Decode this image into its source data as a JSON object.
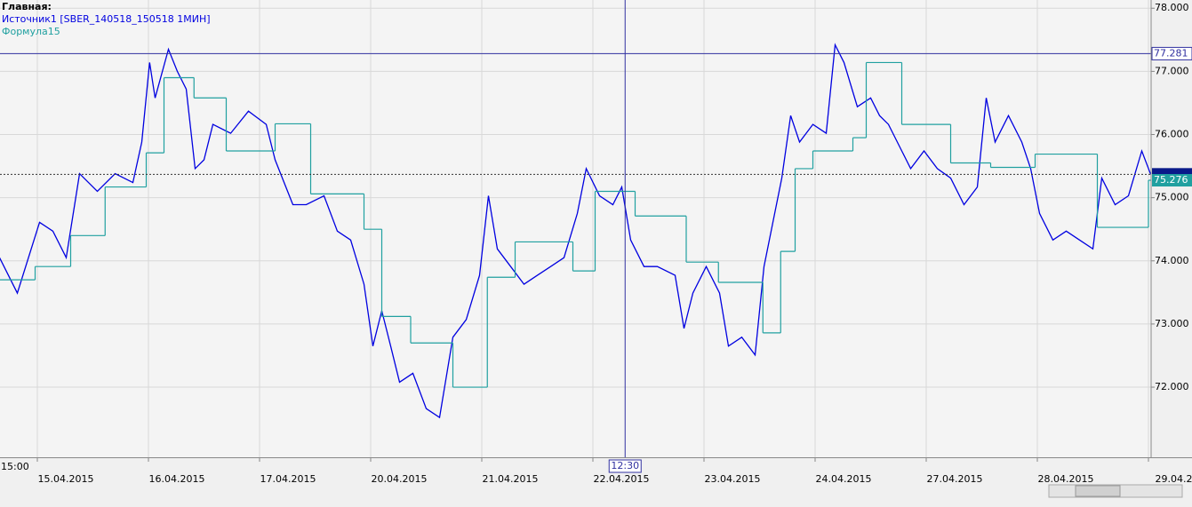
{
  "chart_data": {
    "type": "line",
    "title": "Главная:",
    "x_start_label": "15:00",
    "series": [
      {
        "name": "Источник1 [SBER_140518_150518 1МИН]",
        "color": "#0000e0",
        "x": [
          -0.34,
          -0.18,
          0.02,
          0.14,
          0.26,
          0.38,
          0.54,
          0.7,
          0.86,
          0.94,
          1.01,
          1.06,
          1.18,
          1.26,
          1.34,
          1.42,
          1.5,
          1.58,
          1.74,
          1.9,
          2.06,
          2.14,
          2.3,
          2.42,
          2.58,
          2.7,
          2.82,
          2.94,
          3.02,
          3.1,
          3.18,
          3.26,
          3.38,
          3.5,
          3.62,
          3.74,
          3.86,
          3.98,
          4.06,
          4.14,
          4.26,
          4.38,
          4.5,
          4.62,
          4.74,
          4.86,
          4.94,
          5.06,
          5.18,
          5.26,
          5.34,
          5.46,
          5.58,
          5.74,
          5.82,
          5.9,
          6.02,
          6.14,
          6.22,
          6.34,
          6.46,
          6.54,
          6.62,
          6.7,
          6.78,
          6.86,
          6.98,
          7.1,
          7.18,
          7.26,
          7.38,
          7.5,
          7.58,
          7.66,
          7.78,
          7.86,
          7.98,
          8.1,
          8.22,
          8.34,
          8.46,
          8.54,
          8.62,
          8.74,
          8.86,
          8.94,
          9.02,
          9.14,
          9.26,
          9.38,
          9.5,
          9.58,
          9.7,
          9.82,
          9.94,
          10.02
        ],
        "values": [
          74.05,
          73.49,
          74.61,
          74.47,
          74.05,
          75.38,
          75.1,
          75.38,
          75.24,
          75.88,
          77.14,
          76.58,
          77.35,
          77.0,
          76.72,
          75.46,
          75.6,
          76.16,
          76.02,
          76.37,
          76.16,
          75.6,
          74.89,
          74.89,
          75.03,
          74.47,
          74.33,
          73.63,
          72.65,
          73.21,
          72.65,
          72.08,
          72.22,
          71.66,
          71.52,
          72.79,
          73.07,
          73.77,
          75.03,
          74.19,
          73.91,
          73.63,
          73.77,
          73.91,
          74.05,
          74.75,
          75.46,
          75.03,
          74.89,
          75.17,
          74.33,
          73.91,
          73.91,
          73.77,
          72.93,
          73.49,
          73.91,
          73.49,
          72.65,
          72.79,
          72.51,
          73.91,
          74.61,
          75.31,
          76.3,
          75.88,
          76.16,
          76.02,
          77.42,
          77.14,
          76.44,
          76.58,
          76.3,
          76.16,
          75.74,
          75.46,
          75.74,
          75.46,
          75.31,
          74.89,
          75.17,
          76.58,
          75.88,
          76.3,
          75.88,
          75.46,
          74.75,
          74.33,
          74.47,
          74.33,
          74.19,
          75.31,
          74.89,
          75.03,
          75.74,
          75.37
        ]
      },
      {
        "name": "Формула15",
        "color": "#20a0a0",
        "step": true,
        "x": [
          -0.34,
          -0.02,
          0.3,
          0.61,
          0.98,
          1.14,
          1.41,
          1.7,
          2.14,
          2.46,
          2.94,
          3.1,
          3.36,
          3.74,
          4.05,
          4.3,
          4.82,
          5.02,
          5.38,
          5.84,
          6.13,
          6.53,
          6.69,
          6.82,
          6.98,
          7.34,
          7.46,
          7.78,
          8.22,
          8.58,
          8.98,
          9.54,
          10.0
        ],
        "values": [
          73.7,
          73.91,
          74.4,
          75.17,
          75.71,
          76.9,
          76.58,
          75.74,
          76.17,
          75.06,
          74.5,
          73.12,
          72.7,
          72.0,
          73.74,
          74.3,
          73.84,
          75.1,
          74.71,
          73.98,
          73.66,
          72.86,
          74.15,
          75.46,
          75.74,
          75.95,
          77.14,
          76.16,
          75.55,
          75.48,
          75.69,
          74.53,
          75.276
        ],
        "last_label": {
          "value": 75.276,
          "label": "75.276"
        }
      }
    ],
    "xlim": [
      -0.336,
      10.024
    ],
    "xticks": [
      {
        "value": 0,
        "label": "15.04.2015"
      },
      {
        "value": 1,
        "label": "16.04.2015"
      },
      {
        "value": 2,
        "label": "17.04.2015"
      },
      {
        "value": 3,
        "label": "20.04.2015"
      },
      {
        "value": 4,
        "label": "21.04.2015"
      },
      {
        "value": 5,
        "label": "22.04.2015"
      },
      {
        "value": 6,
        "label": "23.04.2015"
      },
      {
        "value": 7,
        "label": "24.04.2015"
      },
      {
        "value": 8,
        "label": "27.04.2015"
      },
      {
        "value": 9,
        "label": "28.04.2015"
      },
      {
        "value": 10,
        "label": "29.04.20"
      }
    ],
    "ylim": [
      70.89,
      78.13
    ],
    "yticks": [
      {
        "value": 72,
        "label": "72.000"
      },
      {
        "value": 73,
        "label": "73.000"
      },
      {
        "value": 74,
        "label": "74.000"
      },
      {
        "value": 75,
        "label": "75.000"
      },
      {
        "value": 76,
        "label": "76.000"
      },
      {
        "value": 77,
        "label": "77.000"
      },
      {
        "value": 78,
        "label": "78.000"
      }
    ],
    "crosshair": {
      "x": {
        "value": 5.29,
        "label": "12:30"
      },
      "y": {
        "value": 77.281,
        "label": "77.281"
      }
    },
    "grid": true
  }
}
